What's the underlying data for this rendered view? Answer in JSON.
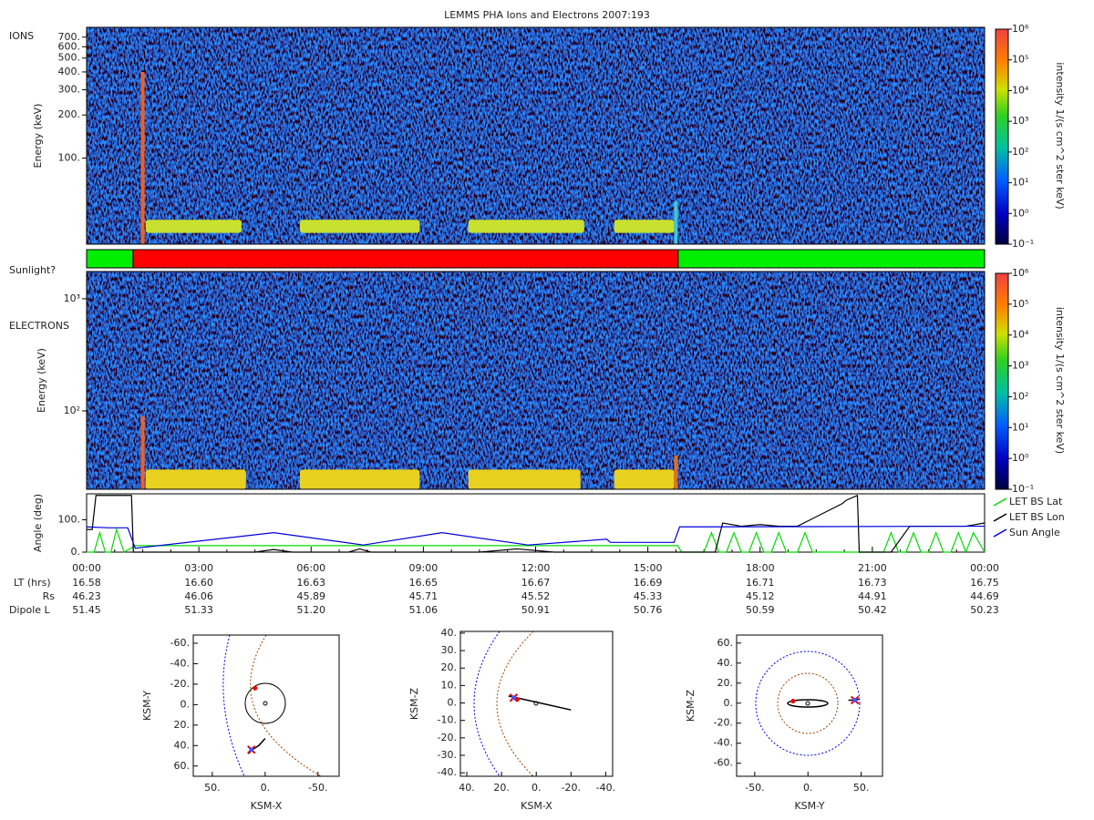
{
  "title": "LEMMS PHA Ions and Electrons  2007:193",
  "chart_data": [
    {
      "type": "spectrogram",
      "panel_label": "IONS",
      "y_label": "Energy (keV)",
      "log_y": true,
      "xlim": [
        0,
        24
      ],
      "ylim": [
        25,
        820
      ],
      "yticks": [
        {
          "value": 100,
          "label": "100."
        },
        {
          "value": 200,
          "label": "200."
        },
        {
          "value": 300,
          "label": "300."
        },
        {
          "value": 400,
          "label": "400."
        },
        {
          "value": 500,
          "label": "500."
        },
        {
          "value": 600,
          "label": "600."
        },
        {
          "value": 700,
          "label": "700."
        }
      ],
      "bands": [
        {
          "start": 1.58,
          "end": 4.14,
          "low": 30,
          "high": 37,
          "color": "#c8e030"
        },
        {
          "start": 5.7,
          "end": 8.9,
          "low": 30,
          "high": 37,
          "color": "#c8e030"
        },
        {
          "start": 10.2,
          "end": 13.3,
          "low": 30,
          "high": 37,
          "color": "#c8e030"
        },
        {
          "start": 14.1,
          "end": 15.7,
          "low": 30,
          "high": 37,
          "color": "#c8e030"
        }
      ],
      "spikes": [
        {
          "at": 1.5,
          "high": 400,
          "color": "#f06020"
        },
        {
          "at": 15.75,
          "high": 50,
          "color": "#40c8d0"
        }
      ],
      "colorbar": {
        "label": "intensity 1/(s cm^2 ster keV)",
        "lim": [
          0.1,
          1000000
        ],
        "ticks": [
          {
            "value": 0.1,
            "label": "10⁻¹"
          },
          {
            "value": 1,
            "label": "10⁰"
          },
          {
            "value": 10,
            "label": "10¹"
          },
          {
            "value": 100,
            "label": "10²"
          },
          {
            "value": 1000,
            "label": "10³"
          },
          {
            "value": 10000,
            "label": "10⁴"
          },
          {
            "value": 100000,
            "label": "10⁵"
          },
          {
            "value": 1000000,
            "label": "10⁶"
          }
        ]
      }
    },
    {
      "type": "status",
      "label": "Sunlight?",
      "xlim": [
        0,
        24
      ],
      "segments": [
        {
          "start": 0,
          "end": 1.24,
          "color": "#00ee00"
        },
        {
          "start": 1.24,
          "end": 15.81,
          "color": "#ff0000"
        },
        {
          "start": 15.81,
          "end": 24,
          "color": "#00ee00"
        }
      ]
    },
    {
      "type": "spectrogram",
      "panel_label": "ELECTRONS",
      "y_label": "Energy (keV)",
      "log_y": true,
      "xlim": [
        0,
        24
      ],
      "ylim": [
        20,
        1750
      ],
      "yticks": [
        {
          "value": 100,
          "label": "10²"
        },
        {
          "value": 1000,
          "label": "10³"
        }
      ],
      "bands": [
        {
          "start": 1.58,
          "end": 4.26,
          "low": 20,
          "high": 30,
          "color": "#e8d020"
        },
        {
          "start": 5.7,
          "end": 8.9,
          "low": 20,
          "high": 30,
          "color": "#e8d020"
        },
        {
          "start": 10.2,
          "end": 13.2,
          "low": 20,
          "high": 30,
          "color": "#e8d020"
        },
        {
          "start": 14.1,
          "end": 15.7,
          "low": 20,
          "high": 30,
          "color": "#e8d020"
        }
      ],
      "spikes": [
        {
          "at": 1.5,
          "high": 90,
          "color": "#f06020"
        },
        {
          "at": 15.75,
          "high": 40,
          "color": "#e07020"
        }
      ],
      "colorbar": {
        "label": "intensity 1/(s cm^2 ster keV)",
        "lim": [
          0.1,
          1000000
        ],
        "ticks": [
          {
            "value": 0.1,
            "label": "10⁻¹"
          },
          {
            "value": 1,
            "label": "10⁰"
          },
          {
            "value": 10,
            "label": "10¹"
          },
          {
            "value": 100,
            "label": "10²"
          },
          {
            "value": 1000,
            "label": "10³"
          },
          {
            "value": 10000,
            "label": "10⁴"
          },
          {
            "value": 100000,
            "label": "10⁵"
          },
          {
            "value": 1000000,
            "label": "10⁶"
          }
        ]
      }
    },
    {
      "type": "line",
      "y_label": "Angle (deg)",
      "xlim": [
        0,
        24
      ],
      "ylim": [
        0,
        180
      ],
      "legend": "right",
      "yticks": [
        {
          "value": 0,
          "label": "0."
        },
        {
          "value": 100,
          "label": "100."
        }
      ],
      "xticks": [
        {
          "value": 0,
          "label": "00:00"
        },
        {
          "value": 3,
          "label": "03:00"
        },
        {
          "value": 6,
          "label": "06:00"
        },
        {
          "value": 9,
          "label": "09:00"
        },
        {
          "value": 12,
          "label": "12:00"
        },
        {
          "value": 15,
          "label": "15:00"
        },
        {
          "value": 18,
          "label": "18:00"
        },
        {
          "value": 21,
          "label": "21:00"
        },
        {
          "value": 24,
          "label": "00:00"
        }
      ],
      "series": [
        {
          "name": "LET BS Lat",
          "color": "#00dd00",
          "x": [
            0,
            0.2,
            0.35,
            0.5,
            0.65,
            0.8,
            1.0,
            1.3,
            15.8,
            15.9,
            16.5,
            16.7,
            16.9,
            17.1,
            17.3,
            17.5,
            17.7,
            17.9,
            18.1,
            18.3,
            18.5,
            18.7,
            19.0,
            19.2,
            19.4,
            21.3,
            21.5,
            21.7,
            21.9,
            22.1,
            22.3,
            22.5,
            22.7,
            22.9,
            23.1,
            23.3,
            23.5,
            23.7,
            24
          ],
          "y": [
            0,
            0,
            60,
            0,
            0,
            70,
            0,
            20,
            20,
            0,
            0,
            60,
            0,
            0,
            60,
            0,
            0,
            60,
            0,
            0,
            60,
            0,
            0,
            60,
            0,
            0,
            60,
            0,
            0,
            60,
            0,
            0,
            60,
            0,
            0,
            60,
            0,
            60,
            0
          ]
        },
        {
          "name": "LET BS Lon",
          "color": "#000000",
          "x": [
            0,
            0.15,
            0.25,
            1.2,
            1.25,
            1.3,
            4.5,
            5.0,
            5.5,
            7.0,
            7.3,
            7.6,
            10.5,
            11.5,
            12.5,
            16.8,
            17.0,
            17.5,
            18.0,
            18.5,
            19.0,
            20.2,
            20.3,
            20.6,
            20.65,
            21.5,
            22.0,
            22.5,
            23.0,
            23.5,
            24
          ],
          "y": [
            70,
            70,
            175,
            175,
            0,
            0,
            0,
            8,
            0,
            0,
            10,
            0,
            0,
            10,
            0,
            0,
            90,
            80,
            85,
            80,
            80,
            150,
            160,
            175,
            0,
            0,
            80,
            80,
            80,
            80,
            90
          ]
        },
        {
          "name": "Sun Angle",
          "color": "#0000dd",
          "x": [
            0,
            0.6,
            1.1,
            1.3,
            5.0,
            7.4,
            9.5,
            11.8,
            13.9,
            14.0,
            15.7,
            15.85,
            16.5,
            24
          ],
          "y": [
            78,
            75,
            75,
            12,
            60,
            22,
            60,
            22,
            40,
            30,
            30,
            78,
            78,
            80
          ]
        }
      ]
    },
    {
      "type": "orbit",
      "x_label": "KSM-X",
      "y_label": "KSM-Y",
      "xlim": [
        68,
        -70
      ],
      "ylim": [
        70,
        -68
      ],
      "xticks": [
        {
          "value": 50,
          "label": "50."
        },
        {
          "value": 0,
          "label": "0."
        },
        {
          "value": -50,
          "label": "-50."
        }
      ],
      "yticks": [
        {
          "value": -60,
          "label": "-60."
        },
        {
          "value": -40,
          "label": "-40."
        },
        {
          "value": -20,
          "label": "-20."
        },
        {
          "value": 0,
          "label": "0."
        },
        {
          "value": 20,
          "label": "20."
        },
        {
          "value": 40,
          "label": "40."
        },
        {
          "value": 60,
          "label": "60."
        }
      ],
      "trajectory": {
        "x": [
          16,
          12,
          6,
          0
        ],
        "y": [
          48,
          44,
          40,
          33
        ]
      },
      "spacecraft": [
        13,
        44
      ],
      "moon": [
        9.5,
        -16
      ]
    },
    {
      "type": "orbit",
      "x_label": "KSM-X",
      "y_label": "KSM-Z",
      "xlim": [
        43.7,
        -44
      ],
      "ylim": [
        -42,
        41
      ],
      "xticks": [
        {
          "value": 40,
          "label": "40."
        },
        {
          "value": 20,
          "label": "20."
        },
        {
          "value": 0,
          "label": "0."
        },
        {
          "value": -20,
          "label": "-20."
        },
        {
          "value": -40,
          "label": "-40."
        }
      ],
      "yticks": [
        {
          "value": 40,
          "label": "40."
        },
        {
          "value": 30,
          "label": "30."
        },
        {
          "value": 20,
          "label": "20."
        },
        {
          "value": 10,
          "label": "10."
        },
        {
          "value": 0,
          "label": "0."
        },
        {
          "value": -10,
          "label": "-10."
        },
        {
          "value": -20,
          "label": "-20."
        },
        {
          "value": -30,
          "label": "-30."
        },
        {
          "value": -40,
          "label": "-40."
        }
      ],
      "trajectory": {
        "x": [
          16,
          0,
          -20
        ],
        "y": [
          4,
          0.5,
          -4
        ]
      },
      "spacecraft": [
        13,
        3
      ],
      "moon": [
        11,
        2
      ]
    },
    {
      "type": "orbit",
      "x_label": "KSM-Y",
      "y_label": "KSM-Z",
      "xlim": [
        -67,
        70
      ],
      "ylim": [
        -73,
        68
      ],
      "xticks": [
        {
          "value": -50,
          "label": "-50."
        },
        {
          "value": 0,
          "label": "0."
        },
        {
          "value": 50,
          "label": "50."
        }
      ],
      "yticks": [
        {
          "value": 60,
          "label": "60."
        },
        {
          "value": 40,
          "label": "40."
        },
        {
          "value": 20,
          "label": "20."
        },
        {
          "value": 0,
          "label": "0."
        },
        {
          "value": -20,
          "label": "-20."
        },
        {
          "value": -40,
          "label": "-40."
        },
        {
          "value": -60,
          "label": "-60."
        }
      ],
      "trajectory": {
        "x": [
          38,
          44,
          48
        ],
        "y": [
          3,
          3,
          4
        ]
      },
      "spacecraft": [
        44,
        3
      ],
      "moon": [
        -14,
        2
      ]
    }
  ],
  "ephemeris": {
    "rows": [
      {
        "label": "LT (hrs)",
        "values": [
          "16.58",
          "16.60",
          "16.63",
          "16.65",
          "16.67",
          "16.69",
          "16.71",
          "16.73",
          "16.75"
        ]
      },
      {
        "label": "Rs",
        "values": [
          "46.23",
          "46.06",
          "45.89",
          "45.71",
          "45.52",
          "45.33",
          "45.12",
          "44.91",
          "44.69"
        ]
      },
      {
        "label": "Dipole L",
        "values": [
          "51.45",
          "51.33",
          "51.20",
          "51.06",
          "50.91",
          "50.76",
          "50.59",
          "50.42",
          "50.23"
        ]
      }
    ]
  }
}
